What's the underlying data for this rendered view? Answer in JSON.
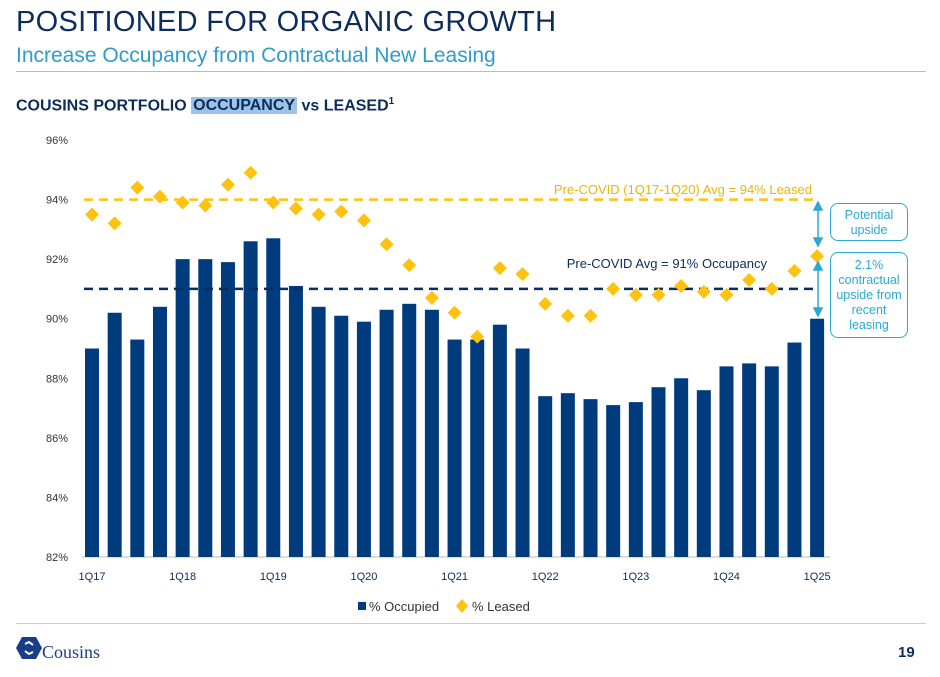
{
  "header": {
    "title": "POSITIONED FOR ORGANIC GROWTH",
    "subtitle": "Increase Occupancy from Contractual New Leasing"
  },
  "chart_header": {
    "prefix": "COUSINS PORTFOLIO ",
    "highlight": "OCCUPANCY",
    "suffix": " vs LEASED",
    "footnote": "1"
  },
  "annotations": {
    "leased_avg": "Pre-COVID (1Q17-1Q20) Avg = 94% Leased",
    "occupancy_avg": "Pre-COVID Avg = 91% Occupancy",
    "potential": "Potential upside",
    "contractual": "2.1% contractual upside from recent leasing"
  },
  "footer": {
    "logo": "Cousins",
    "page": "19"
  },
  "colors": {
    "occupied": "#003b7e",
    "leased": "#ffc20e",
    "accent": "#2aa9d2"
  },
  "chart_data": {
    "type": "bar",
    "title": "COUSINS PORTFOLIO OCCUPANCY vs LEASED",
    "ylim": [
      82,
      96
    ],
    "yticks": [
      "82%",
      "84%",
      "86%",
      "88%",
      "90%",
      "92%",
      "94%",
      "96%"
    ],
    "xtick_labels": [
      "1Q17",
      "1Q18",
      "1Q19",
      "1Q20",
      "1Q21",
      "1Q22",
      "1Q23",
      "1Q24",
      "1Q25"
    ],
    "categories": [
      "1Q17",
      "2Q17",
      "3Q17",
      "4Q17",
      "1Q18",
      "2Q18",
      "3Q18",
      "4Q18",
      "1Q19",
      "2Q19",
      "3Q19",
      "4Q19",
      "1Q20",
      "2Q20",
      "3Q20",
      "4Q20",
      "1Q21",
      "2Q21",
      "3Q21",
      "4Q21",
      "1Q22",
      "2Q22",
      "3Q22",
      "4Q22",
      "1Q23",
      "2Q23",
      "3Q23",
      "4Q23",
      "1Q24",
      "2Q24",
      "3Q24",
      "4Q24",
      "1Q25"
    ],
    "series": [
      {
        "name": "% Occupied",
        "type": "bar",
        "values": [
          89.0,
          90.2,
          89.3,
          90.4,
          92.0,
          92.0,
          91.9,
          92.6,
          92.7,
          91.1,
          90.4,
          90.1,
          89.9,
          90.3,
          90.5,
          90.3,
          89.3,
          89.3,
          89.8,
          89.0,
          87.4,
          87.5,
          87.3,
          87.1,
          87.2,
          87.7,
          88.0,
          87.6,
          88.4,
          88.5,
          88.4,
          89.2,
          90.0
        ]
      },
      {
        "name": "% Leased",
        "type": "scatter",
        "values": [
          93.5,
          93.2,
          94.4,
          94.1,
          93.9,
          93.8,
          94.5,
          94.9,
          93.9,
          93.7,
          93.5,
          93.6,
          93.3,
          92.5,
          91.8,
          90.7,
          90.2,
          89.4,
          91.7,
          91.5,
          90.5,
          90.1,
          90.1,
          91.0,
          90.8,
          90.8,
          91.1,
          90.9,
          90.8,
          91.3,
          91.0,
          91.6,
          92.1
        ]
      }
    ],
    "reference_lines": [
      {
        "label": "Pre-COVID Avg Leased",
        "value": 94
      },
      {
        "label": "Pre-COVID Avg Occupancy",
        "value": 91
      }
    ],
    "legend_position": "bottom"
  }
}
